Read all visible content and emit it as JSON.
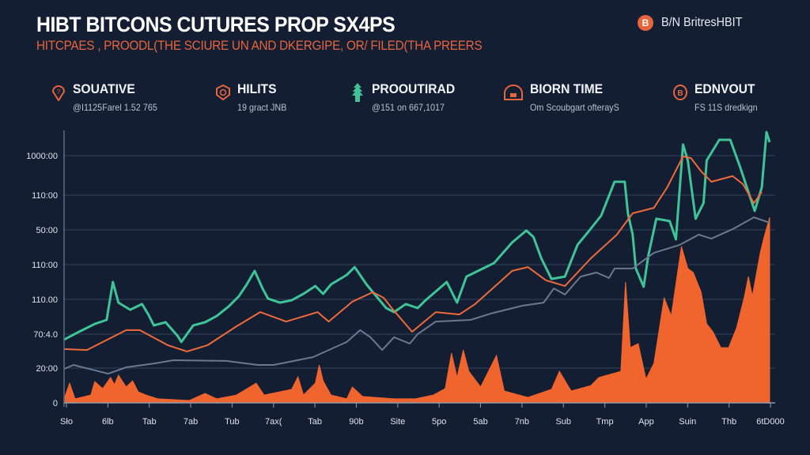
{
  "header": {
    "title": "HIBT BITCONS CUTURES PROP SX4PS",
    "subtitle": "HITCPAES , PROODL(THE SCIURE UN AND DKERGIPE, OR/ FILED(THA PREERS",
    "brand_logo": "B",
    "brand_text": "B/N BritresHBIT"
  },
  "stats": [
    {
      "icon": "shield-pin-icon",
      "title": "SOUATIVE",
      "subtitle": "@I1125Farel 1.52 765",
      "color": "#e8643c"
    },
    {
      "icon": "clock-badge-icon",
      "title": "HILITS",
      "subtitle": "19 gract JNB",
      "color": "#e8643c"
    },
    {
      "icon": "tree-icon",
      "title": "PROOUTIRAD",
      "subtitle": "@151 on 667,1017",
      "color": "#3ec497"
    },
    {
      "icon": "dome-icon",
      "title": "BIORN TIME",
      "subtitle": "Om Scoubgart ofterayS",
      "color": "#e8643c"
    },
    {
      "icon": "coin-icon",
      "title": "EDNVOUT",
      "subtitle": "FS 11S dredkign",
      "color": "#e8643c"
    }
  ],
  "colors": {
    "background": "#131e32",
    "grid": "#2c3b56",
    "green": "#3ec497",
    "orange": "#ee6a3a",
    "gray": "#6b7891",
    "volume": "#f0642e"
  },
  "chart_data": {
    "type": "line",
    "title": "HIBT BITCONS CUTURES PROP SX4PS",
    "grid": true,
    "legend": "none",
    "y_tick_labels": [
      "0",
      "20:00",
      "70:4.0",
      "110.00",
      "110:00",
      "50:00",
      "110:00",
      "1000:00"
    ],
    "x_tick_labels": [
      "Sło",
      "6lb",
      "Tab",
      "7ab",
      "Tub",
      "7ax(",
      "Tab",
      "90b",
      "Site",
      "5po",
      "5ab",
      "7nb",
      "Sub",
      "Tmp",
      "App",
      "Suin",
      "Thb",
      "6tD000"
    ],
    "xlim": [
      0,
      36
    ],
    "ylim": [
      0,
      115
    ],
    "series": [
      {
        "color": "#3ec497",
        "kind": "line",
        "points": [
          [
            0,
            26.7
          ],
          [
            0.76,
            30
          ],
          [
            1.56,
            33.3
          ],
          [
            2.16,
            35
          ],
          [
            2.48,
            51
          ],
          [
            2.76,
            42.3
          ],
          [
            3.36,
            39.3
          ],
          [
            3.96,
            41.7
          ],
          [
            4.28,
            37.3
          ],
          [
            4.56,
            32.7
          ],
          [
            5.16,
            34
          ],
          [
            5.76,
            28.3
          ],
          [
            5.96,
            25.7
          ],
          [
            6.56,
            32.7
          ],
          [
            7.16,
            34
          ],
          [
            7.76,
            36.7
          ],
          [
            8.36,
            40.7
          ],
          [
            8.88,
            45
          ],
          [
            9.28,
            50
          ],
          [
            9.68,
            55.7
          ],
          [
            10.08,
            48.3
          ],
          [
            10.36,
            44
          ],
          [
            10.96,
            42.3
          ],
          [
            11.56,
            43.3
          ],
          [
            12.16,
            46
          ],
          [
            12.76,
            49.3
          ],
          [
            13.16,
            46
          ],
          [
            13.56,
            50
          ],
          [
            14.36,
            54
          ],
          [
            14.76,
            57.3
          ],
          [
            15.36,
            50
          ],
          [
            15.76,
            46
          ],
          [
            16.36,
            40
          ],
          [
            16.76,
            38.3
          ],
          [
            17.36,
            41.7
          ],
          [
            17.96,
            40
          ],
          [
            18.36,
            43.3
          ],
          [
            19.44,
            51
          ],
          [
            19.96,
            42.3
          ],
          [
            20.44,
            53.3
          ],
          [
            21.84,
            59
          ],
          [
            22.76,
            67.7
          ],
          [
            23.48,
            72.7
          ],
          [
            23.84,
            70
          ],
          [
            24.24,
            61
          ],
          [
            24.76,
            52.3
          ],
          [
            25.44,
            53.3
          ],
          [
            26.08,
            66.7
          ],
          [
            26.64,
            72.3
          ],
          [
            27.28,
            79
          ],
          [
            27.96,
            93.3
          ],
          [
            28.48,
            93.3
          ],
          [
            28.64,
            80
          ],
          [
            28.88,
            71
          ],
          [
            29.04,
            56.7
          ],
          [
            29.44,
            49
          ],
          [
            29.68,
            62.3
          ],
          [
            30.08,
            77.7
          ],
          [
            30.76,
            76.7
          ],
          [
            31.08,
            69
          ],
          [
            31.44,
            109
          ],
          [
            31.68,
            102.3
          ],
          [
            32.08,
            77.7
          ],
          [
            32.48,
            84.3
          ],
          [
            32.64,
            102.3
          ],
          [
            33.28,
            111
          ],
          [
            33.84,
            111
          ],
          [
            34.36,
            99
          ],
          [
            34.76,
            89
          ],
          [
            35.08,
            81
          ],
          [
            35.44,
            91
          ],
          [
            35.68,
            114.3
          ],
          [
            35.84,
            110
          ]
        ]
      },
      {
        "color": "#ee6a3a",
        "kind": "line",
        "points": [
          [
            0,
            22.7
          ],
          [
            1.16,
            22.3
          ],
          [
            3.16,
            30.7
          ],
          [
            3.84,
            30.7
          ],
          [
            5.28,
            24.3
          ],
          [
            6.24,
            21.7
          ],
          [
            7.28,
            24.3
          ],
          [
            8.76,
            32.3
          ],
          [
            9.96,
            38.3
          ],
          [
            11.28,
            34.3
          ],
          [
            12.88,
            38.3
          ],
          [
            13.44,
            34.3
          ],
          [
            14.64,
            42.7
          ],
          [
            15.68,
            46.7
          ],
          [
            16.24,
            44.3
          ],
          [
            16.64,
            40
          ],
          [
            17.68,
            30
          ],
          [
            18.88,
            38.3
          ],
          [
            20.08,
            37.3
          ],
          [
            20.88,
            41.7
          ],
          [
            22.76,
            55.7
          ],
          [
            23.56,
            57.3
          ],
          [
            24.48,
            51.7
          ],
          [
            25.44,
            49.3
          ],
          [
            26.76,
            61
          ],
          [
            28.08,
            71
          ],
          [
            28.88,
            80
          ],
          [
            29.96,
            82.3
          ],
          [
            30.64,
            91
          ],
          [
            31.44,
            104
          ],
          [
            31.84,
            103.3
          ],
          [
            32.36,
            97.7
          ],
          [
            32.88,
            93.3
          ],
          [
            33.96,
            95.7
          ],
          [
            34.48,
            92.3
          ],
          [
            35.04,
            84.3
          ],
          [
            35.44,
            89
          ]
        ]
      },
      {
        "color": "#6b7891",
        "kind": "line",
        "points": [
          [
            0,
            14.3
          ],
          [
            0.48,
            16
          ],
          [
            2.24,
            12.3
          ],
          [
            3.16,
            15
          ],
          [
            4.64,
            16.7
          ],
          [
            5.56,
            18
          ],
          [
            8.24,
            17.7
          ],
          [
            9.84,
            16
          ],
          [
            10.64,
            16
          ],
          [
            12.64,
            19.3
          ],
          [
            14.36,
            25.7
          ],
          [
            15.04,
            30.7
          ],
          [
            15.56,
            27.7
          ],
          [
            16.16,
            22.3
          ],
          [
            16.76,
            27.7
          ],
          [
            17.56,
            25
          ],
          [
            17.96,
            29
          ],
          [
            18.88,
            34.3
          ],
          [
            20.64,
            35
          ],
          [
            21.68,
            37.7
          ],
          [
            23.28,
            41
          ],
          [
            24.36,
            42.3
          ],
          [
            24.88,
            48.3
          ],
          [
            25.44,
            45.7
          ],
          [
            26.24,
            53.3
          ],
          [
            27.04,
            55
          ],
          [
            27.68,
            52.7
          ],
          [
            27.96,
            56.7
          ],
          [
            28.88,
            56.7
          ],
          [
            29.96,
            63.3
          ],
          [
            31.28,
            66.7
          ],
          [
            32.24,
            71
          ],
          [
            32.88,
            69.3
          ],
          [
            33.96,
            73.3
          ],
          [
            35.04,
            78.3
          ],
          [
            35.84,
            76
          ]
        ]
      },
      {
        "color": "#f0642e",
        "kind": "area",
        "points": [
          [
            0,
            1.7
          ],
          [
            0.28,
            8.3
          ],
          [
            0.56,
            1.7
          ],
          [
            1.36,
            3.3
          ],
          [
            1.56,
            9
          ],
          [
            1.96,
            6
          ],
          [
            2.36,
            10.7
          ],
          [
            2.56,
            7.7
          ],
          [
            2.76,
            11.7
          ],
          [
            3.16,
            6.7
          ],
          [
            3.48,
            9.3
          ],
          [
            3.76,
            4.7
          ],
          [
            4.16,
            3.3
          ],
          [
            4.76,
            1.7
          ],
          [
            6.36,
            1
          ],
          [
            7.16,
            4
          ],
          [
            7.76,
            1.7
          ],
          [
            8.76,
            3.3
          ],
          [
            9.76,
            8.3
          ],
          [
            10.16,
            3.3
          ],
          [
            11.56,
            5.7
          ],
          [
            11.88,
            11
          ],
          [
            12.16,
            3.3
          ],
          [
            12.76,
            8.3
          ],
          [
            12.96,
            16
          ],
          [
            13.16,
            9.3
          ],
          [
            13.56,
            3.3
          ],
          [
            14.36,
            1.7
          ],
          [
            14.64,
            6.7
          ],
          [
            15.16,
            2.7
          ],
          [
            16.76,
            1.7
          ],
          [
            17.84,
            1.7
          ],
          [
            18.76,
            3.3
          ],
          [
            19.36,
            6
          ],
          [
            19.68,
            21
          ],
          [
            19.96,
            10.7
          ],
          [
            20.28,
            22.3
          ],
          [
            20.56,
            13.3
          ],
          [
            21.16,
            6.7
          ],
          [
            21.96,
            20
          ],
          [
            22.36,
            5
          ],
          [
            23.56,
            2.3
          ],
          [
            24.76,
            5.7
          ],
          [
            25.16,
            13.3
          ],
          [
            25.76,
            5
          ],
          [
            26.76,
            7.3
          ],
          [
            27.16,
            10.7
          ],
          [
            28.28,
            13.3
          ],
          [
            28.52,
            51
          ],
          [
            28.76,
            23.3
          ],
          [
            29.16,
            25
          ],
          [
            29.56,
            10
          ],
          [
            29.96,
            16.7
          ],
          [
            30.48,
            44.3
          ],
          [
            30.84,
            36.7
          ],
          [
            31.36,
            66
          ],
          [
            31.68,
            56.7
          ],
          [
            31.96,
            55
          ],
          [
            32.36,
            46.7
          ],
          [
            32.64,
            33.3
          ],
          [
            32.96,
            30
          ],
          [
            33.36,
            23.3
          ],
          [
            33.76,
            23.3
          ],
          [
            34.16,
            31.7
          ],
          [
            34.56,
            45
          ],
          [
            34.76,
            53.3
          ],
          [
            34.96,
            45
          ],
          [
            35.36,
            63.3
          ],
          [
            35.56,
            70
          ],
          [
            35.84,
            78.3
          ]
        ]
      }
    ]
  }
}
